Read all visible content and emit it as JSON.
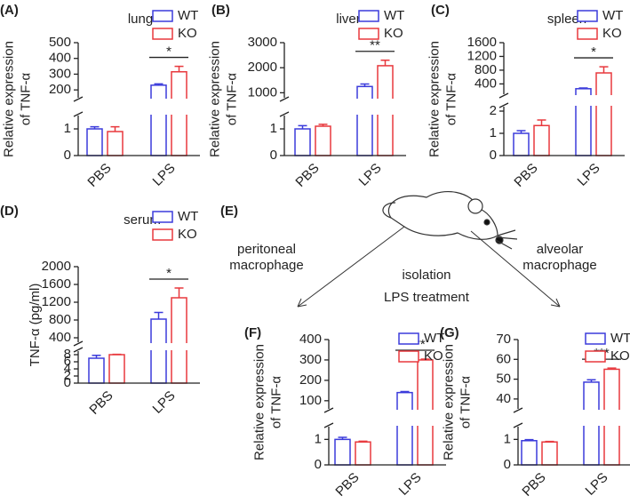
{
  "chart_data": [
    {
      "type": "bar",
      "panel": "(A)",
      "title": "lung",
      "ylabel": [
        "Relative expression",
        "of TNF-α"
      ],
      "categories": [
        "PBS",
        "LPS"
      ],
      "series": [
        {
          "name": "WT",
          "color": "#3b3bdb",
          "values": [
            1.0,
            230
          ],
          "errors": [
            0.08,
            8
          ]
        },
        {
          "name": "KO",
          "color": "#e8383d",
          "values": [
            0.9,
            315
          ],
          "errors": [
            0.18,
            35
          ]
        }
      ],
      "ylim_lower": [
        0,
        1.5
      ],
      "yticks_lower": [
        0,
        1
      ],
      "ylim_upper": [
        150,
        500
      ],
      "yticks_upper": [
        200,
        300,
        400,
        500
      ],
      "annotation": "*",
      "legend": "upper right"
    },
    {
      "type": "bar",
      "panel": "(B)",
      "title": "liver",
      "ylabel": [
        "Relative expression",
        "of TNF-α"
      ],
      "categories": [
        "PBS",
        "LPS"
      ],
      "series": [
        {
          "name": "WT",
          "color": "#3b3bdb",
          "values": [
            1.0,
            1250
          ],
          "errors": [
            0.12,
            100
          ]
        },
        {
          "name": "KO",
          "color": "#e8383d",
          "values": [
            1.1,
            2080
          ],
          "errors": [
            0.07,
            220
          ]
        }
      ],
      "ylim_lower": [
        0,
        1.5
      ],
      "yticks_lower": [
        0,
        1
      ],
      "ylim_upper": [
        800,
        3000
      ],
      "yticks_upper": [
        1000,
        2000,
        3000
      ],
      "annotation": "**",
      "legend": "upper right"
    },
    {
      "type": "bar",
      "panel": "(C)",
      "title": "spleen",
      "ylabel": [
        "Relative expression",
        "of TNF-α"
      ],
      "categories": [
        "PBS",
        "LPS"
      ],
      "series": [
        {
          "name": "WT",
          "color": "#3b3bdb",
          "values": [
            1.0,
            260
          ],
          "errors": [
            0.12,
            20
          ]
        },
        {
          "name": "KO",
          "color": "#e8383d",
          "values": [
            1.35,
            720
          ],
          "errors": [
            0.25,
            180
          ]
        }
      ],
      "ylim_lower": [
        0,
        2.2
      ],
      "yticks_lower": [
        0,
        1,
        2
      ],
      "ylim_upper": [
        100,
        1600
      ],
      "yticks_upper": [
        400,
        800,
        1200,
        1600
      ],
      "annotation": "*",
      "legend": "upper right"
    },
    {
      "type": "bar",
      "panel": "(D)",
      "title": "serum",
      "ylabel": [
        "TNF-α (pg/ml)"
      ],
      "categories": [
        "PBS",
        "LPS"
      ],
      "series": [
        {
          "name": "WT",
          "color": "#3b3bdb",
          "values": [
            7,
            820
          ],
          "errors": [
            0.8,
            150
          ]
        },
        {
          "name": "KO",
          "color": "#e8383d",
          "values": [
            8,
            1300
          ],
          "errors": [
            0.1,
            220
          ]
        }
      ],
      "ylim_lower": [
        0,
        9
      ],
      "yticks_lower": [
        0,
        2,
        4,
        6,
        8
      ],
      "ylim_upper": [
        300,
        2000
      ],
      "yticks_upper": [
        400,
        800,
        1200,
        1600,
        2000
      ],
      "annotation": "*",
      "legend": "upper right"
    },
    {
      "type": "bar",
      "panel": "(F)",
      "ylabel": [
        "Relative expression",
        "of TNF-α"
      ],
      "categories": [
        "PBS",
        "LPS"
      ],
      "series": [
        {
          "name": "WT",
          "color": "#3b3bdb",
          "values": [
            1.0,
            140
          ],
          "errors": [
            0.08,
            5
          ]
        },
        {
          "name": "KO",
          "color": "#e8383d",
          "values": [
            0.9,
            300
          ],
          "errors": [
            0.03,
            4
          ]
        }
      ],
      "ylim_lower": [
        0,
        1.5
      ],
      "yticks_lower": [
        0,
        1
      ],
      "ylim_upper": [
        60,
        400
      ],
      "yticks_upper": [
        100,
        200,
        300,
        400
      ],
      "annotation": "****",
      "legend": "upper right"
    },
    {
      "type": "bar",
      "panel": "(G)",
      "ylabel": [
        "Relative expression",
        "of TNF-α"
      ],
      "categories": [
        "PBS",
        "LPS"
      ],
      "series": [
        {
          "name": "WT",
          "color": "#3b3bdb",
          "values": [
            0.95,
            48.5
          ],
          "errors": [
            0.04,
            1.2
          ]
        },
        {
          "name": "KO",
          "color": "#e8383d",
          "values": [
            0.9,
            55
          ],
          "errors": [
            0.02,
            0.6
          ]
        }
      ],
      "ylim_lower": [
        0,
        1.5
      ],
      "yticks_lower": [
        0,
        1
      ],
      "ylim_upper": [
        35,
        70
      ],
      "yticks_upper": [
        40,
        50,
        60,
        70
      ],
      "annotation": "***",
      "legend": "upper right"
    }
  ],
  "diagram": {
    "panel": "(E)",
    "left_label": [
      "peritoneal",
      "macrophage"
    ],
    "right_label": [
      "alveolar",
      "macrophage"
    ],
    "center_label": [
      "isolation",
      "LPS treatment"
    ]
  }
}
